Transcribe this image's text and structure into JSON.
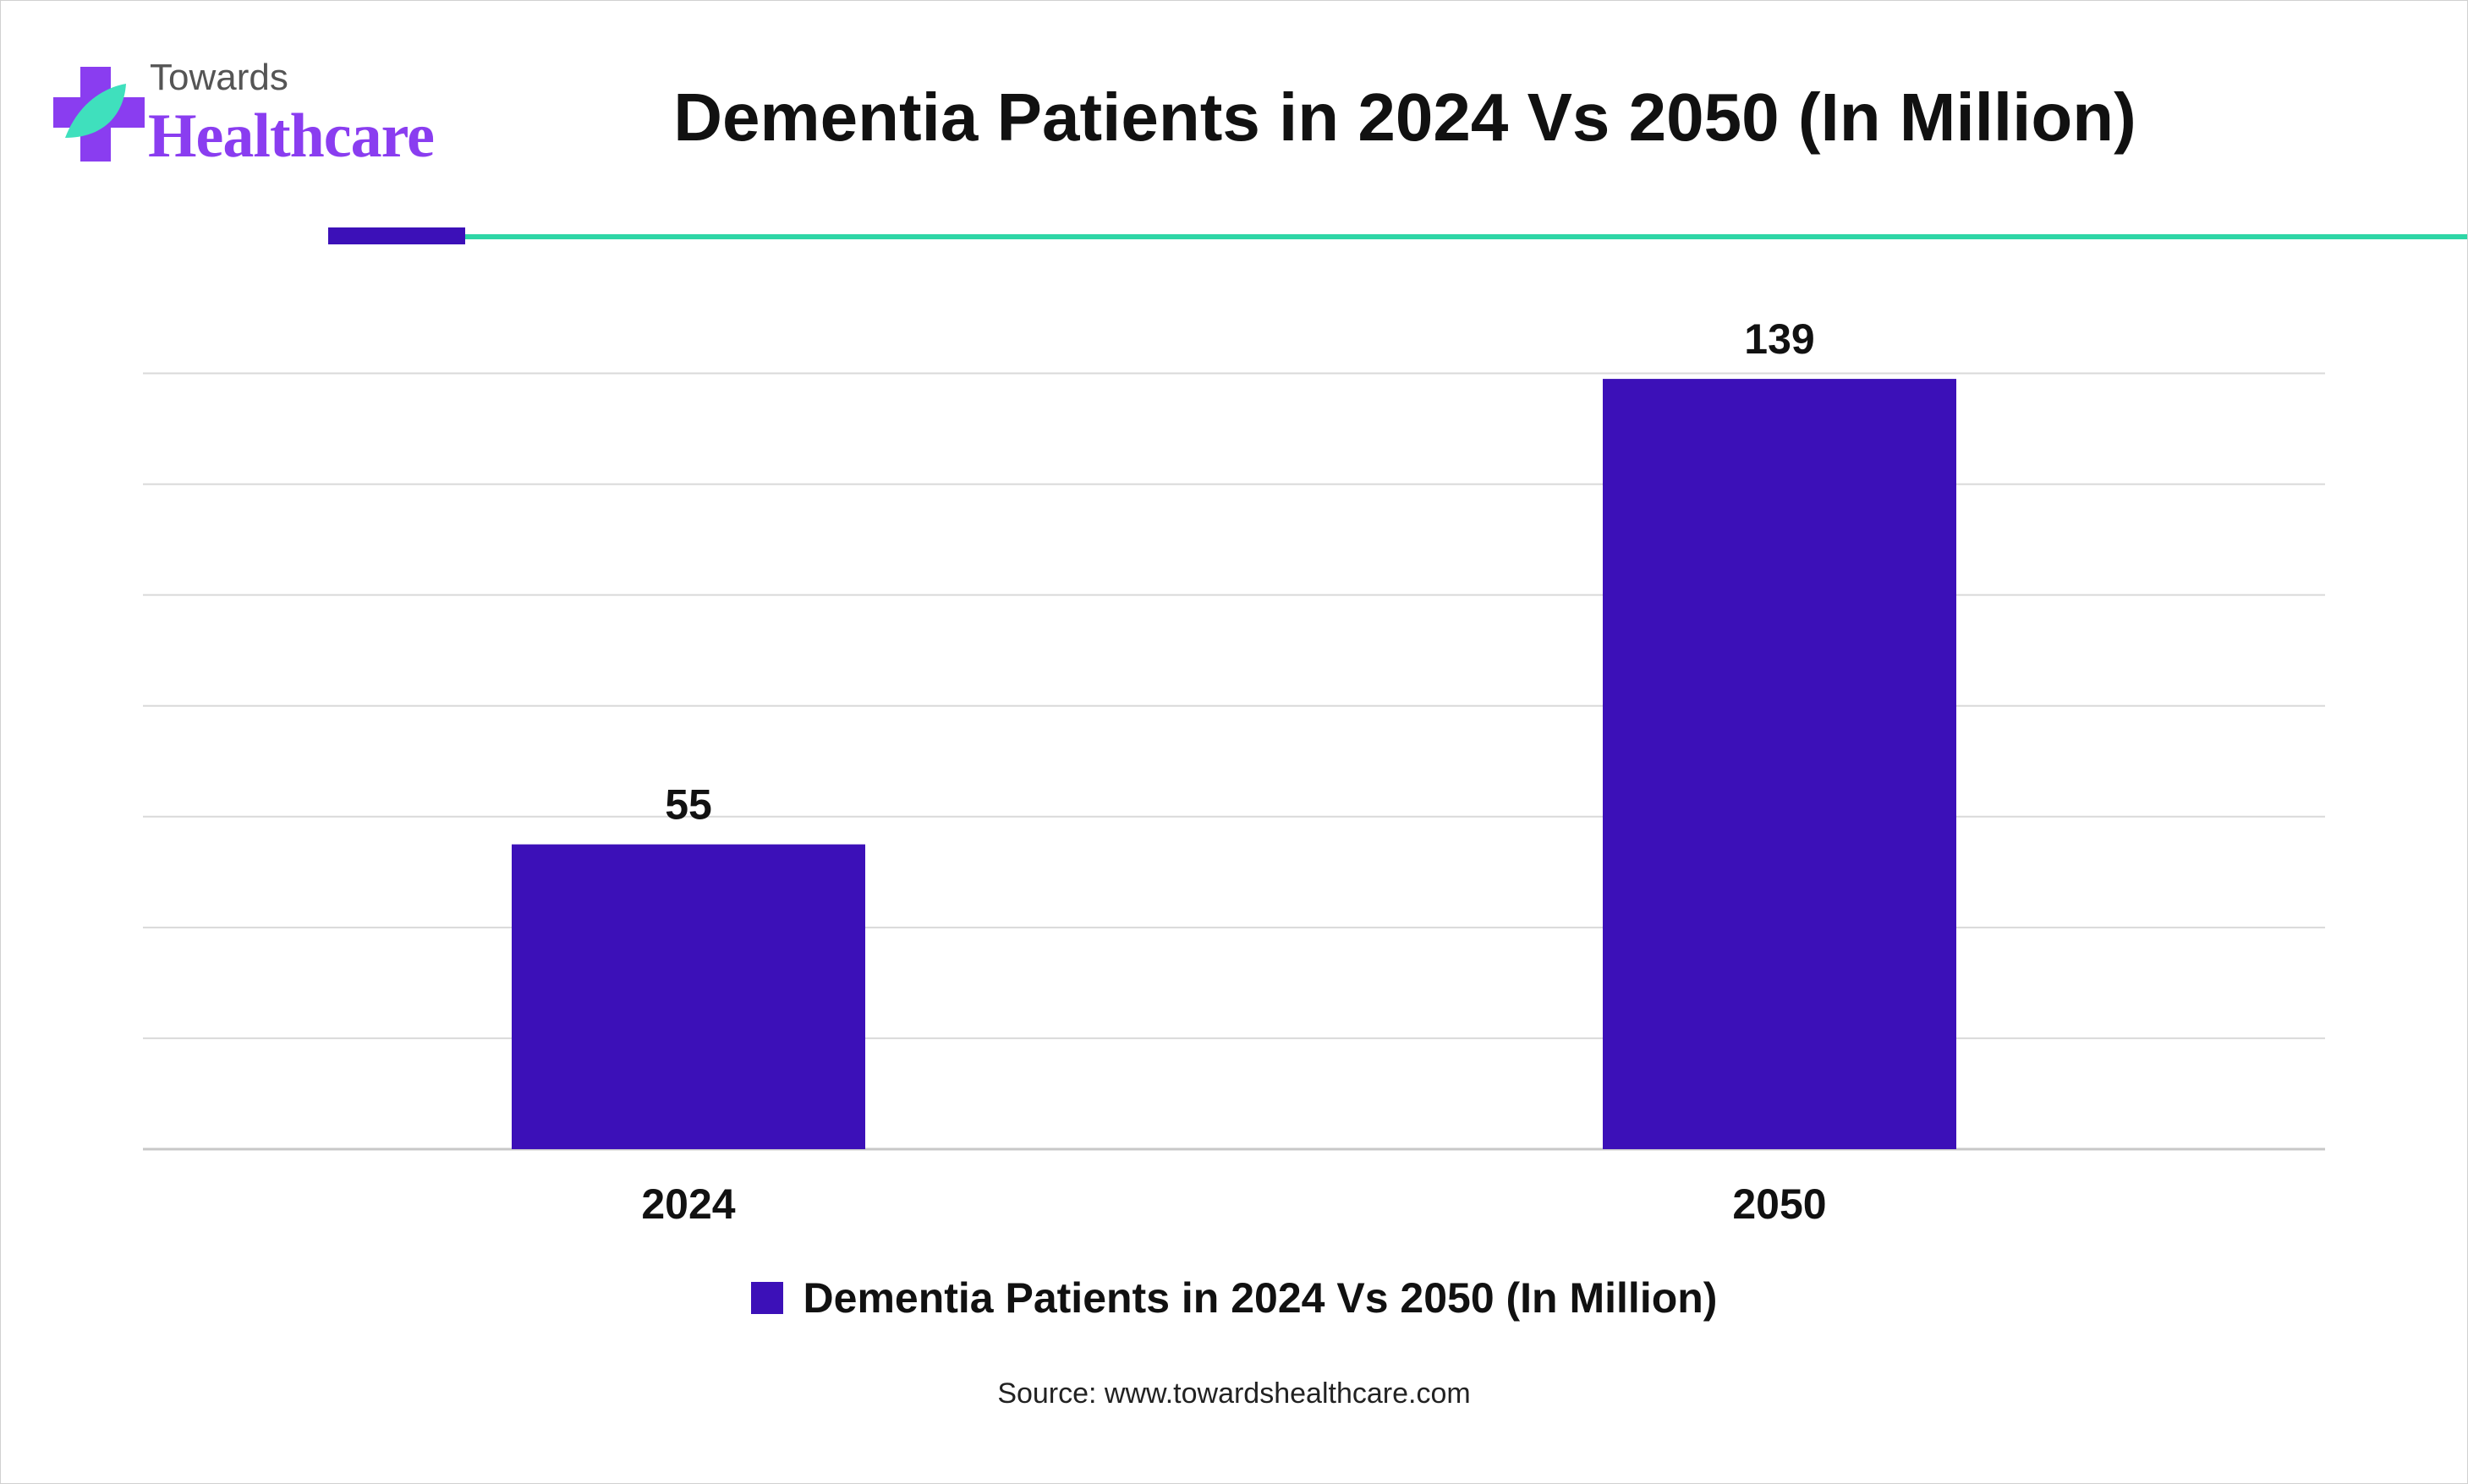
{
  "brand": {
    "small": "Towards",
    "big": "Healthcare",
    "purple": "#8a3df0",
    "teal": "#3fe0bd"
  },
  "title": "Dementia Patients in 2024 Vs 2050 (In Million)",
  "accent": {
    "bar": "#3c10b8",
    "line": "#2ed6a6"
  },
  "chart_data": {
    "type": "bar",
    "categories": [
      "2024",
      "2050"
    ],
    "series": [
      {
        "name": "Dementia Patients in 2024 Vs 2050 (In Million)",
        "values": [
          55,
          139
        ],
        "color": "#3c10b8"
      }
    ],
    "ylim": [
      0,
      150
    ],
    "grid": true,
    "y_tick_labels_visible": false,
    "legend": "bottom"
  },
  "source": "Source: www.towardshealthcare.com"
}
